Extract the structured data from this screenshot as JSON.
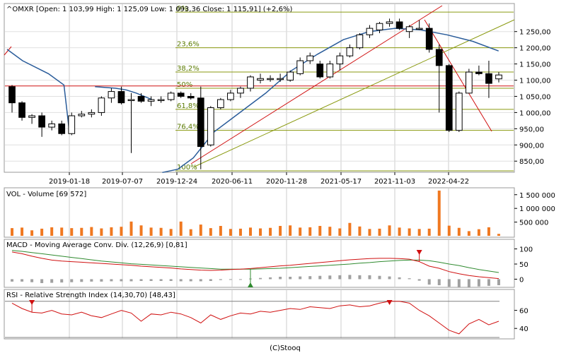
{
  "chart_data": {
    "type": "candlestick",
    "title": "^OMXR [Open: 1 103,99  High: 1 125,09  Low: 1 093,36  Close: 1 115,91] (+2,6%)",
    "footer": "(C)Stooq",
    "x_tick_labels": [
      "2019-01-18",
      "2019-07-07",
      "2019-12-24",
      "2020-06-11",
      "2020-11-28",
      "2021-05-17",
      "2021-11-03",
      "2022-04-22"
    ],
    "price": {
      "ylim": [
        820,
        1330
      ],
      "y_ticks": [
        850,
        900,
        950,
        1000,
        1050,
        1100,
        1150,
        1200,
        1250
      ],
      "y_tick_labels": [
        "850,00",
        "900,00",
        "950,00",
        "1 000,00",
        "1 050,00",
        "1 100,00",
        "1 150,00",
        "1 200,00",
        "1 250,00"
      ],
      "candles": [
        {
          "o": 1080,
          "h": 1085,
          "l": 1000,
          "c": 1030
        },
        {
          "o": 1030,
          "h": 1035,
          "l": 975,
          "c": 985
        },
        {
          "o": 985,
          "h": 995,
          "l": 965,
          "c": 990
        },
        {
          "o": 990,
          "h": 1000,
          "l": 925,
          "c": 955
        },
        {
          "o": 955,
          "h": 975,
          "l": 945,
          "c": 965
        },
        {
          "o": 965,
          "h": 975,
          "l": 930,
          "c": 935
        },
        {
          "o": 935,
          "h": 1000,
          "l": 930,
          "c": 990
        },
        {
          "o": 990,
          "h": 1005,
          "l": 985,
          "c": 995
        },
        {
          "o": 995,
          "h": 1010,
          "l": 985,
          "c": 1000
        },
        {
          "o": 1000,
          "h": 1050,
          "l": 990,
          "c": 1045
        },
        {
          "o": 1045,
          "h": 1075,
          "l": 1030,
          "c": 1065
        },
        {
          "o": 1065,
          "h": 1080,
          "l": 1025,
          "c": 1030
        },
        {
          "o": 1040,
          "h": 1060,
          "l": 875,
          "c": 1040
        },
        {
          "o": 1050,
          "h": 1060,
          "l": 1030,
          "c": 1035
        },
        {
          "o": 1035,
          "h": 1050,
          "l": 1020,
          "c": 1040
        },
        {
          "o": 1040,
          "h": 1050,
          "l": 1030,
          "c": 1040
        },
        {
          "o": 1040,
          "h": 1065,
          "l": 1035,
          "c": 1060
        },
        {
          "o": 1060,
          "h": 1065,
          "l": 1045,
          "c": 1050
        },
        {
          "o": 1050,
          "h": 1060,
          "l": 1040,
          "c": 1045
        },
        {
          "o": 1045,
          "h": 1080,
          "l": 825,
          "c": 895
        },
        {
          "o": 900,
          "h": 1020,
          "l": 895,
          "c": 1015
        },
        {
          "o": 1015,
          "h": 1045,
          "l": 1010,
          "c": 1040
        },
        {
          "o": 1040,
          "h": 1070,
          "l": 1035,
          "c": 1060
        },
        {
          "o": 1060,
          "h": 1080,
          "l": 1045,
          "c": 1075
        },
        {
          "o": 1075,
          "h": 1115,
          "l": 1065,
          "c": 1110
        },
        {
          "o": 1100,
          "h": 1120,
          "l": 1090,
          "c": 1105
        },
        {
          "o": 1105,
          "h": 1115,
          "l": 1095,
          "c": 1105
        },
        {
          "o": 1105,
          "h": 1120,
          "l": 1095,
          "c": 1105
        },
        {
          "o": 1100,
          "h": 1130,
          "l": 1095,
          "c": 1125
        },
        {
          "o": 1120,
          "h": 1170,
          "l": 1115,
          "c": 1160
        },
        {
          "o": 1160,
          "h": 1185,
          "l": 1150,
          "c": 1175
        },
        {
          "o": 1150,
          "h": 1160,
          "l": 1105,
          "c": 1110
        },
        {
          "o": 1110,
          "h": 1160,
          "l": 1105,
          "c": 1150
        },
        {
          "o": 1150,
          "h": 1185,
          "l": 1130,
          "c": 1175
        },
        {
          "o": 1175,
          "h": 1210,
          "l": 1170,
          "c": 1200
        },
        {
          "o": 1200,
          "h": 1245,
          "l": 1195,
          "c": 1240
        },
        {
          "o": 1240,
          "h": 1270,
          "l": 1230,
          "c": 1260
        },
        {
          "o": 1255,
          "h": 1280,
          "l": 1245,
          "c": 1275
        },
        {
          "o": 1275,
          "h": 1290,
          "l": 1265,
          "c": 1280
        },
        {
          "o": 1280,
          "h": 1290,
          "l": 1255,
          "c": 1260
        },
        {
          "o": 1250,
          "h": 1270,
          "l": 1230,
          "c": 1265
        },
        {
          "o": 1260,
          "h": 1285,
          "l": 1255,
          "c": 1260
        },
        {
          "o": 1260,
          "h": 1275,
          "l": 1185,
          "c": 1195
        },
        {
          "o": 1195,
          "h": 1210,
          "l": 1000,
          "c": 1145
        },
        {
          "o": 1145,
          "h": 1150,
          "l": 940,
          "c": 945
        },
        {
          "o": 945,
          "h": 1065,
          "l": 940,
          "c": 1060
        },
        {
          "o": 1060,
          "h": 1135,
          "l": 1060,
          "c": 1125
        },
        {
          "o": 1125,
          "h": 1145,
          "l": 1115,
          "c": 1120
        },
        {
          "o": 1120,
          "h": 1160,
          "l": 1045,
          "c": 1090
        },
        {
          "o": 1104,
          "h": 1125,
          "l": 1093,
          "c": 1116
        }
      ],
      "moving_averages": [
        {
          "segment": 1,
          "points": [
            [
              0,
              1195
            ],
            [
              3,
              1160
            ],
            [
              8,
              1120
            ],
            [
              11,
              1085
            ],
            [
              12,
              945
            ]
          ]
        },
        {
          "segment": 2,
          "points": [
            [
              17,
              1080
            ],
            [
              21,
              1075
            ],
            [
              23,
              1070
            ],
            [
              25,
              1060
            ],
            [
              28,
              1040
            ]
          ]
        },
        {
          "segment": 3,
          "points": [
            [
              30,
              815
            ],
            [
              33,
              825
            ],
            [
              36,
              860
            ],
            [
              40,
              940
            ],
            [
              45,
              1000
            ],
            [
              50,
              1060
            ],
            [
              55,
              1130
            ],
            [
              60,
              1180
            ],
            [
              65,
              1225
            ],
            [
              70,
              1250
            ],
            [
              75,
              1260
            ],
            [
              80,
              1255
            ],
            [
              85,
              1240
            ],
            [
              90,
              1220
            ],
            [
              95,
              1190
            ]
          ]
        }
      ],
      "horizontal_line": 1082,
      "fibonacci": [
        {
          "label": "0%",
          "value": 1310
        },
        {
          "label": "23,6%",
          "value": 1200
        },
        {
          "label": "38,2%",
          "value": 1125
        },
        {
          "label": "50%",
          "value": 1075
        },
        {
          "label": "61,8%",
          "value": 1010
        },
        {
          "label": "76,4%",
          "value": 945
        },
        {
          "label": "100%",
          "value": 820
        }
      ]
    },
    "volume": {
      "title": "VOL - Volume [69 572]",
      "ylim": [
        0,
        1700000
      ],
      "y_ticks": [
        500000,
        1000000,
        1500000
      ],
      "y_tick_labels": [
        "500 000",
        "1 000 000",
        "1 500 000"
      ],
      "values": [
        280000,
        300000,
        200000,
        260000,
        310000,
        300000,
        280000,
        290000,
        320000,
        270000,
        310000,
        330000,
        520000,
        380000,
        300000,
        290000,
        250000,
        520000,
        240000,
        410000,
        280000,
        360000,
        250000,
        260000,
        300000,
        270000,
        290000,
        360000,
        380000,
        300000,
        310000,
        360000,
        330000,
        270000,
        470000,
        340000,
        250000,
        260000,
        380000,
        300000,
        270000,
        250000,
        260000,
        1650000,
        370000,
        290000,
        170000,
        240000,
        310000,
        70000
      ]
    },
    "macd": {
      "title": "MACD - Moving Average Conv. Div. (12,26,9) [0,81]",
      "ylim": [
        -20,
        120
      ],
      "y_ticks": [
        0,
        50,
        100
      ],
      "y_tick_labels": [
        "0",
        "50",
        "100"
      ],
      "macd_line": [
        90,
        84,
        76,
        69,
        63,
        60,
        58,
        56,
        54,
        52,
        50,
        48,
        46,
        43,
        41,
        39,
        37,
        34,
        32,
        30,
        29,
        30,
        32,
        33,
        35,
        38,
        41,
        44,
        46,
        49,
        52,
        55,
        58,
        61,
        64,
        66,
        68,
        69,
        69,
        68,
        66,
        58,
        43,
        36,
        25,
        18,
        12,
        8,
        5,
        2
      ],
      "signal_line": [
        95,
        92,
        88,
        84,
        80,
        76,
        72,
        68,
        64,
        60,
        57,
        54,
        51,
        49,
        47,
        45,
        43,
        41,
        39,
        37,
        35,
        33,
        33,
        33,
        33,
        34,
        35,
        36,
        38,
        40,
        42,
        44,
        46,
        48,
        50,
        53,
        55,
        58,
        60,
        62,
        63,
        63,
        61,
        56,
        50,
        45,
        38,
        32,
        27,
        22
      ],
      "histogram": [
        -8,
        -8,
        -10,
        -13,
        -12,
        -11,
        -10,
        -9,
        -8,
        -8,
        -7,
        -7,
        -7,
        -6,
        -6,
        -6,
        -6,
        -7,
        -7,
        -7,
        -6,
        -3,
        -1,
        0,
        2,
        4,
        6,
        8,
        8,
        9,
        10,
        11,
        12,
        13,
        14,
        13,
        13,
        11,
        9,
        6,
        3,
        -5,
        -18,
        -20,
        -25,
        -27,
        -26,
        -24,
        -22,
        -20
      ],
      "sell_signal_x": 41,
      "buy_signal_x": 24
    },
    "rsi": {
      "title": "RSI - Relative Strength Index (14,30,70) [48,43]",
      "ylim": [
        30,
        80
      ],
      "y_ticks": [
        40,
        60
      ],
      "y_tick_labels": [
        "40",
        "60"
      ],
      "levels": [
        30,
        70
      ],
      "values": [
        68,
        62,
        58,
        57,
        60,
        56,
        55,
        58,
        54,
        52,
        56,
        60,
        57,
        48,
        56,
        55,
        58,
        56,
        52,
        46,
        55,
        50,
        54,
        57,
        56,
        59,
        58,
        60,
        62,
        61,
        64,
        63,
        62,
        65,
        66,
        64,
        65,
        68,
        70,
        70,
        68,
        60,
        54,
        46,
        38,
        34,
        45,
        50,
        44,
        48
      ],
      "sell_signal_x": [
        2,
        38
      ]
    }
  }
}
